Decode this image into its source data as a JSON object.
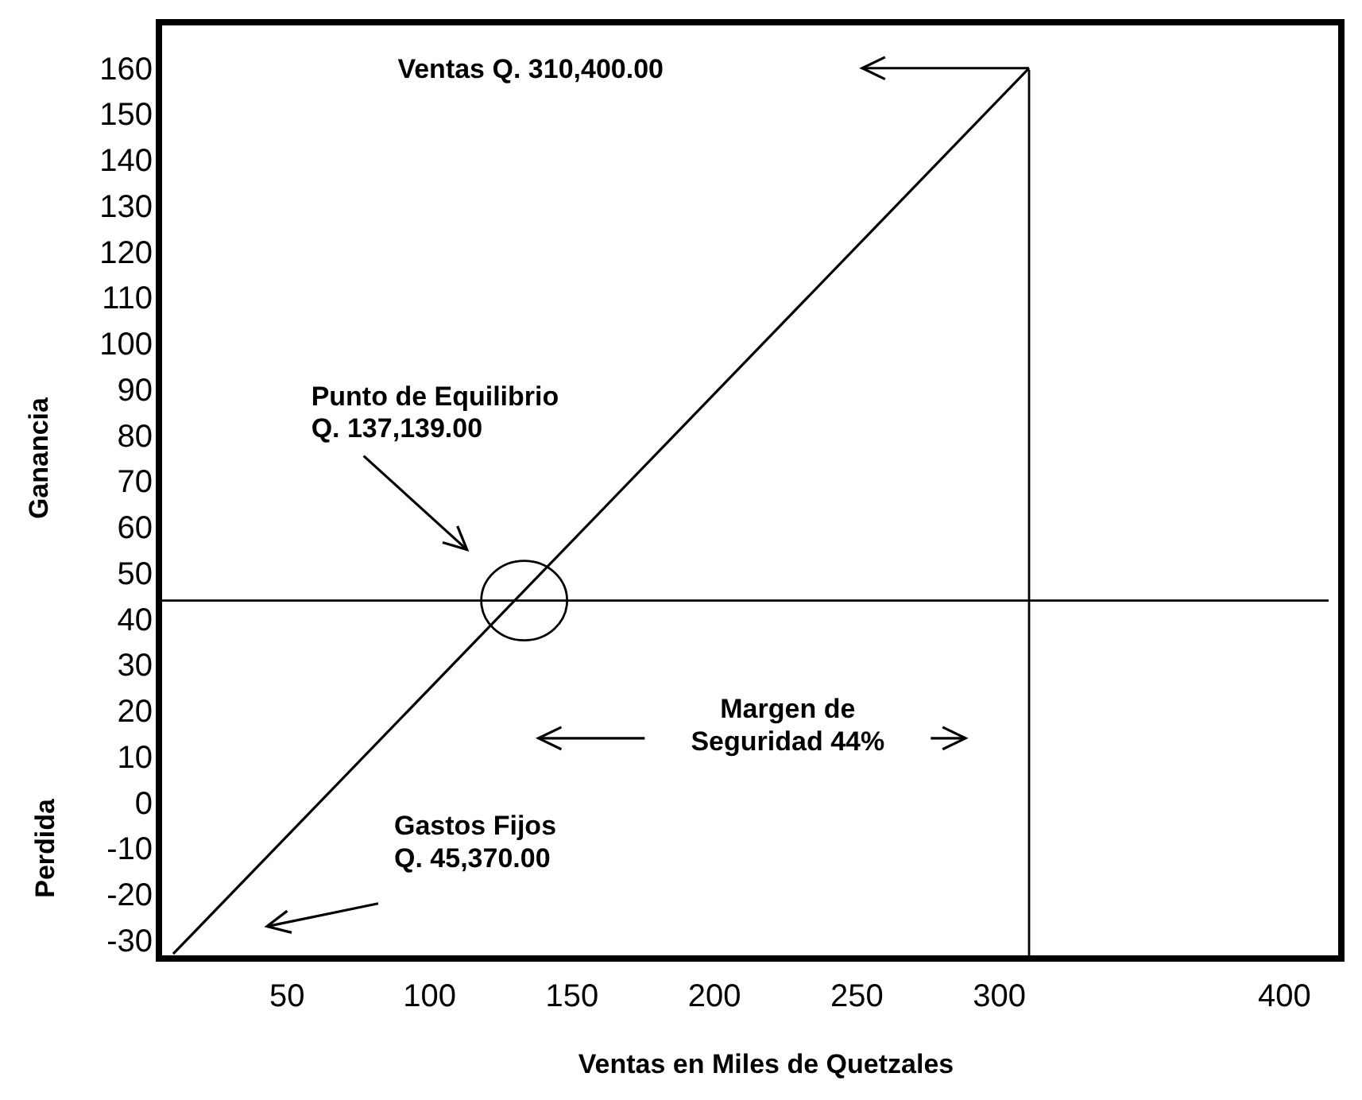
{
  "chart_data": {
    "type": "line",
    "xlabel": "Ventas en Miles de Quetzales",
    "ylabel": "Ganancia",
    "x": [
      10,
      310.4
    ],
    "series": [
      {
        "color": "#000000",
        "values": [
          -33,
          160
        ]
      }
    ],
    "xlim": [
      5,
      420
    ],
    "xticks": [
      50,
      100,
      150,
      200,
      250,
      300,
      400
    ],
    "ylim": [
      -34,
      170
    ],
    "yticks": [
      -30,
      -20,
      -10,
      0,
      10,
      20,
      30,
      40,
      50,
      60,
      70,
      80,
      90,
      100,
      110,
      120,
      130,
      140,
      150,
      160
    ],
    "ref_lines": [
      {
        "axis": "y",
        "value": 44,
        "color": "#000000"
      },
      {
        "axis": "x",
        "value": 310.4,
        "color": "#000000"
      }
    ],
    "annotations": [
      "Ventas Q. 310,400.00",
      "Punto de Equilibrio\nQ. 137,139.00",
      "Margen de\nSeguridad 44%",
      "Gastos Fijos\nQ. 45,370.00",
      "Perdida"
    ],
    "grid": false,
    "marker": "none",
    "line_style": "solid"
  }
}
